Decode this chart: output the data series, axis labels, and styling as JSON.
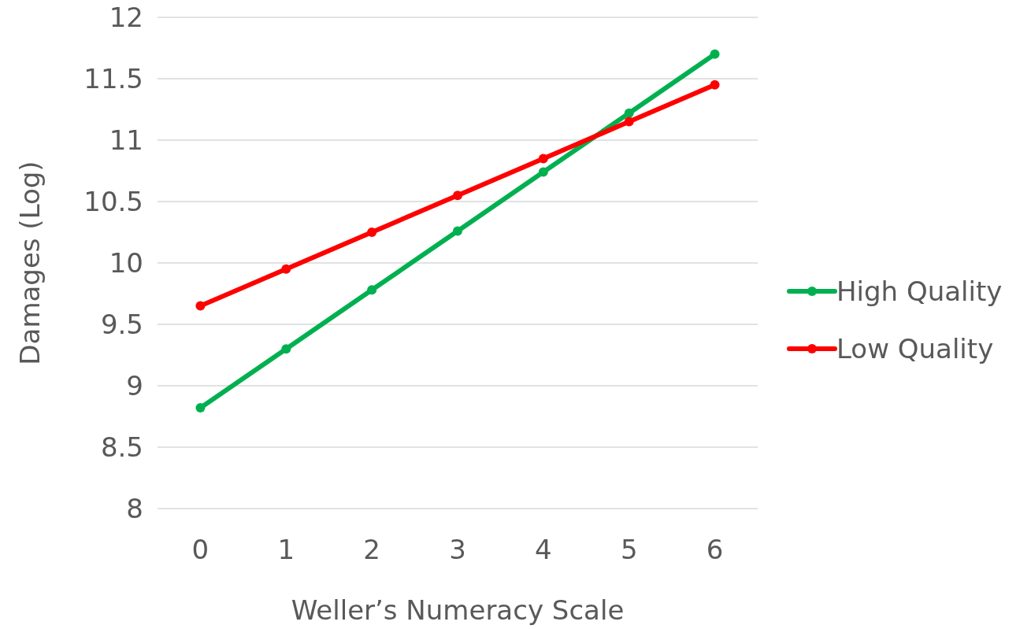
{
  "chart_data": {
    "type": "line",
    "xlabel": "Weller’s Numeracy Scale",
    "ylabel": "Damages (Log)",
    "categories": [
      "0",
      "1",
      "2",
      "3",
      "4",
      "5",
      "6"
    ],
    "series": [
      {
        "name": "High Quality",
        "color": "#00b050",
        "values": [
          8.82,
          9.3,
          9.78,
          10.26,
          10.74,
          11.22,
          11.7
        ]
      },
      {
        "name": "Low Quality",
        "color": "#ff0000",
        "values": [
          9.65,
          9.95,
          10.25,
          10.55,
          10.85,
          11.15,
          11.45
        ]
      }
    ],
    "ylim": [
      8,
      12
    ],
    "yticks": [
      8,
      8.5,
      9,
      9.5,
      10,
      10.5,
      11,
      11.5,
      12
    ],
    "grid": "y",
    "legend": "right",
    "marker": "circle",
    "line_style": "solid"
  }
}
